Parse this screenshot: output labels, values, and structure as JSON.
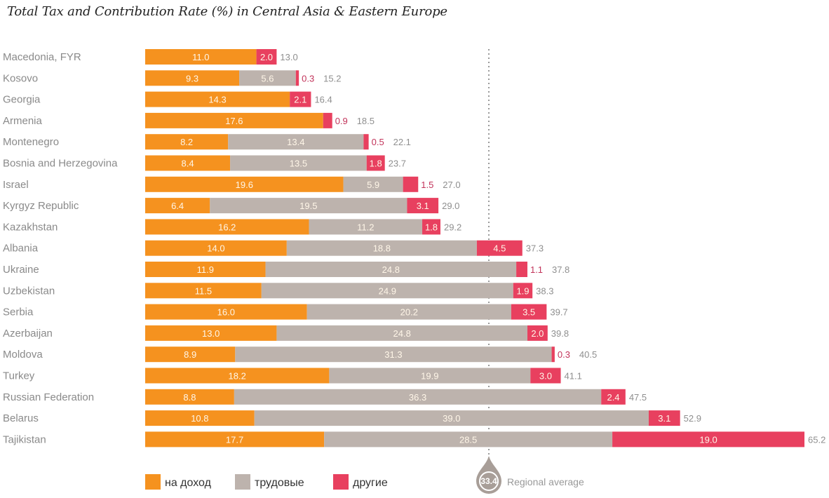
{
  "chart_data": {
    "type": "bar",
    "orientation": "horizontal",
    "stacked": true,
    "title": "Total Tax and Contribution Rate (%) in Central Asia & Eastern Europe",
    "xlabel": "",
    "ylabel": "",
    "xlim": [
      0,
      65.2
    ],
    "grid": false,
    "categories": [
      "Macedonia, FYR",
      "Kosovo",
      "Georgia",
      "Armenia",
      "Montenegro",
      "Bosnia and Herzegovina",
      "Israel",
      "Kyrgyz Republic",
      "Kazakhstan",
      "Albania",
      "Ukraine",
      "Uzbekistan",
      "Serbia",
      "Azerbaijan",
      "Moldova",
      "Turkey",
      "Russian Federation",
      "Belarus",
      "Tajikistan"
    ],
    "series": [
      {
        "name": "на доход",
        "color": "#f5921f",
        "values": [
          11.0,
          9.3,
          14.3,
          17.6,
          8.2,
          8.4,
          19.6,
          6.4,
          16.2,
          14.0,
          11.9,
          11.5,
          16.0,
          13.0,
          8.9,
          18.2,
          8.8,
          10.8,
          17.7
        ]
      },
      {
        "name": "трудовые",
        "color": "#bdb3ad",
        "values": [
          0,
          5.6,
          0,
          0,
          13.4,
          13.5,
          5.9,
          19.5,
          11.2,
          18.8,
          24.8,
          24.9,
          20.2,
          24.8,
          31.3,
          19.9,
          36.3,
          39.0,
          28.5
        ]
      },
      {
        "name": "другие",
        "color": "#e8405f",
        "values": [
          2.0,
          0.3,
          2.1,
          0.9,
          0.5,
          1.8,
          1.5,
          3.1,
          1.8,
          4.5,
          1.1,
          1.9,
          3.5,
          2.0,
          0.3,
          3.0,
          2.4,
          3.1,
          19.0
        ]
      }
    ],
    "totals": [
      13.0,
      15.2,
      16.4,
      18.5,
      22.1,
      23.7,
      27.0,
      29.0,
      29.2,
      37.3,
      37.8,
      38.3,
      39.7,
      39.8,
      40.5,
      41.1,
      47.5,
      52.9,
      65.2
    ],
    "reference_line": {
      "value": 33.4,
      "label": "Regional average",
      "value_label": "33.4"
    },
    "legend": {
      "position": "bottom-left",
      "entries": [
        "на доход",
        "трудовые",
        "другие"
      ]
    }
  }
}
